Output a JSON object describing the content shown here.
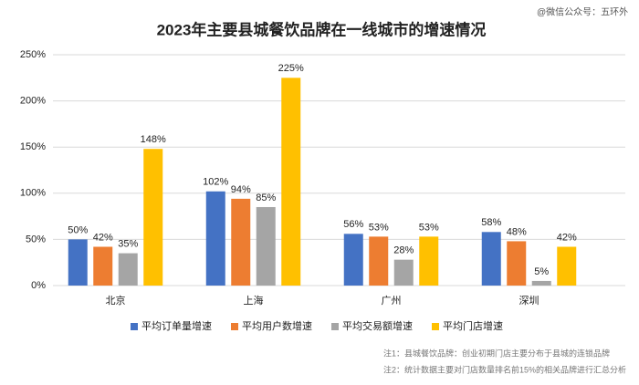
{
  "chart_data": {
    "type": "bar",
    "title": "2023年主要县城餐饮品牌在一线城市的增速情况",
    "watermark": "@微信公众号：五环外",
    "categories": [
      "北京",
      "上海",
      "广州",
      "深圳"
    ],
    "series": [
      {
        "name": "平均订单量增速",
        "color": "#4472c4",
        "values": [
          50,
          102,
          56,
          58
        ],
        "value_labels": [
          "50%",
          "102%",
          "56%",
          "58%"
        ]
      },
      {
        "name": "平均用户数增速",
        "color": "#ed7d31",
        "values": [
          42,
          94,
          53,
          48
        ],
        "value_labels": [
          "42%",
          "94%",
          "53%",
          "48%"
        ]
      },
      {
        "name": "平均交易额增速",
        "color": "#a5a5a5",
        "values": [
          35,
          85,
          28,
          5
        ],
        "value_labels": [
          "35%",
          "85%",
          "28%",
          "5%"
        ]
      },
      {
        "name": "平均门店增速",
        "color": "#ffc000",
        "values": [
          148,
          225,
          53,
          42
        ],
        "value_labels": [
          "148%",
          "225%",
          "53%",
          "42%"
        ]
      }
    ],
    "ylim": [
      0,
      250
    ],
    "yticks": [
      {
        "value": 0,
        "label": "0%"
      },
      {
        "value": 50,
        "label": "50%"
      },
      {
        "value": 100,
        "label": "100%"
      },
      {
        "value": 150,
        "label": "150%"
      },
      {
        "value": 200,
        "label": "200%"
      },
      {
        "value": 250,
        "label": "250%"
      }
    ],
    "grid": true,
    "legend": "bottom",
    "notes": [
      "注1：县城餐饮品牌：创业初期门店主要分布于县城的连锁品牌",
      "注2：统计数据主要对门店数量排名前15%的相关品牌进行汇总分析"
    ]
  }
}
